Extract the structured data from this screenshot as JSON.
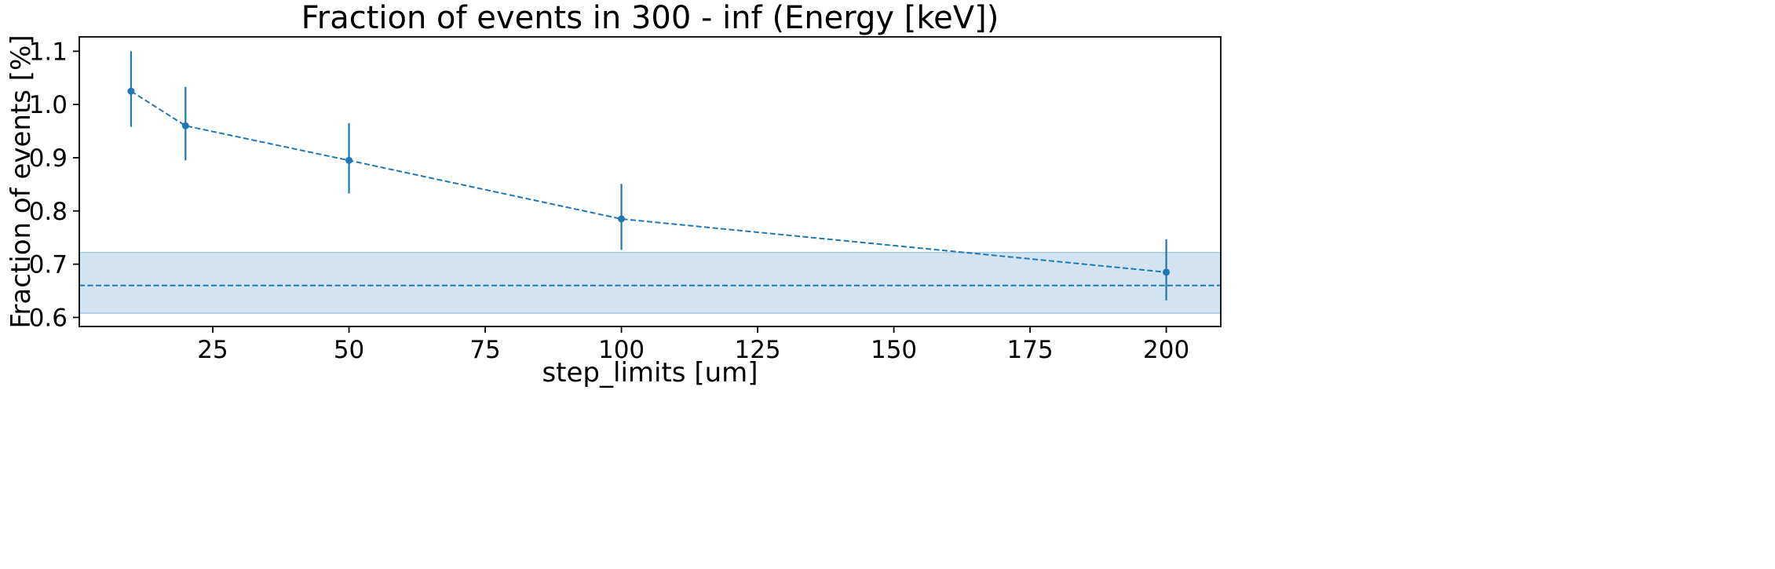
{
  "chart_data": {
    "type": "line",
    "title": "Fraction of events in 300 - inf (Energy [keV])",
    "xlabel": "step_limits [um]",
    "ylabel": "Fraction of events [%]",
    "xlim": [
      0.5,
      210
    ],
    "ylim": [
      0.583,
      1.127
    ],
    "xticks": [
      25,
      50,
      75,
      100,
      125,
      150,
      175,
      200
    ],
    "xtick_labels": [
      "25",
      "50",
      "75",
      "100",
      "125",
      "150",
      "175",
      "200"
    ],
    "yticks": [
      0.6,
      0.7,
      0.8,
      0.9,
      1.0,
      1.1
    ],
    "ytick_labels": [
      "0.6",
      "0.7",
      "0.8",
      "0.9",
      "1.0",
      "1.1"
    ],
    "grid": false,
    "series": [
      {
        "x": [
          10,
          20,
          50,
          100,
          200
        ],
        "y": [
          1.025,
          0.96,
          0.895,
          0.785,
          0.685
        ],
        "yerr_low": [
          0.958,
          0.895,
          0.833,
          0.727,
          0.632
        ],
        "yerr_high": [
          1.1,
          1.033,
          0.965,
          0.851,
          0.747
        ],
        "color": "#1f77b4",
        "linestyle": "dashed",
        "marker": "circle"
      }
    ],
    "reference": {
      "y": 0.66,
      "band": [
        0.608,
        0.722
      ],
      "color": "#1f77b4",
      "band_color": "#a6c8e3",
      "linestyle": "dashed"
    }
  }
}
